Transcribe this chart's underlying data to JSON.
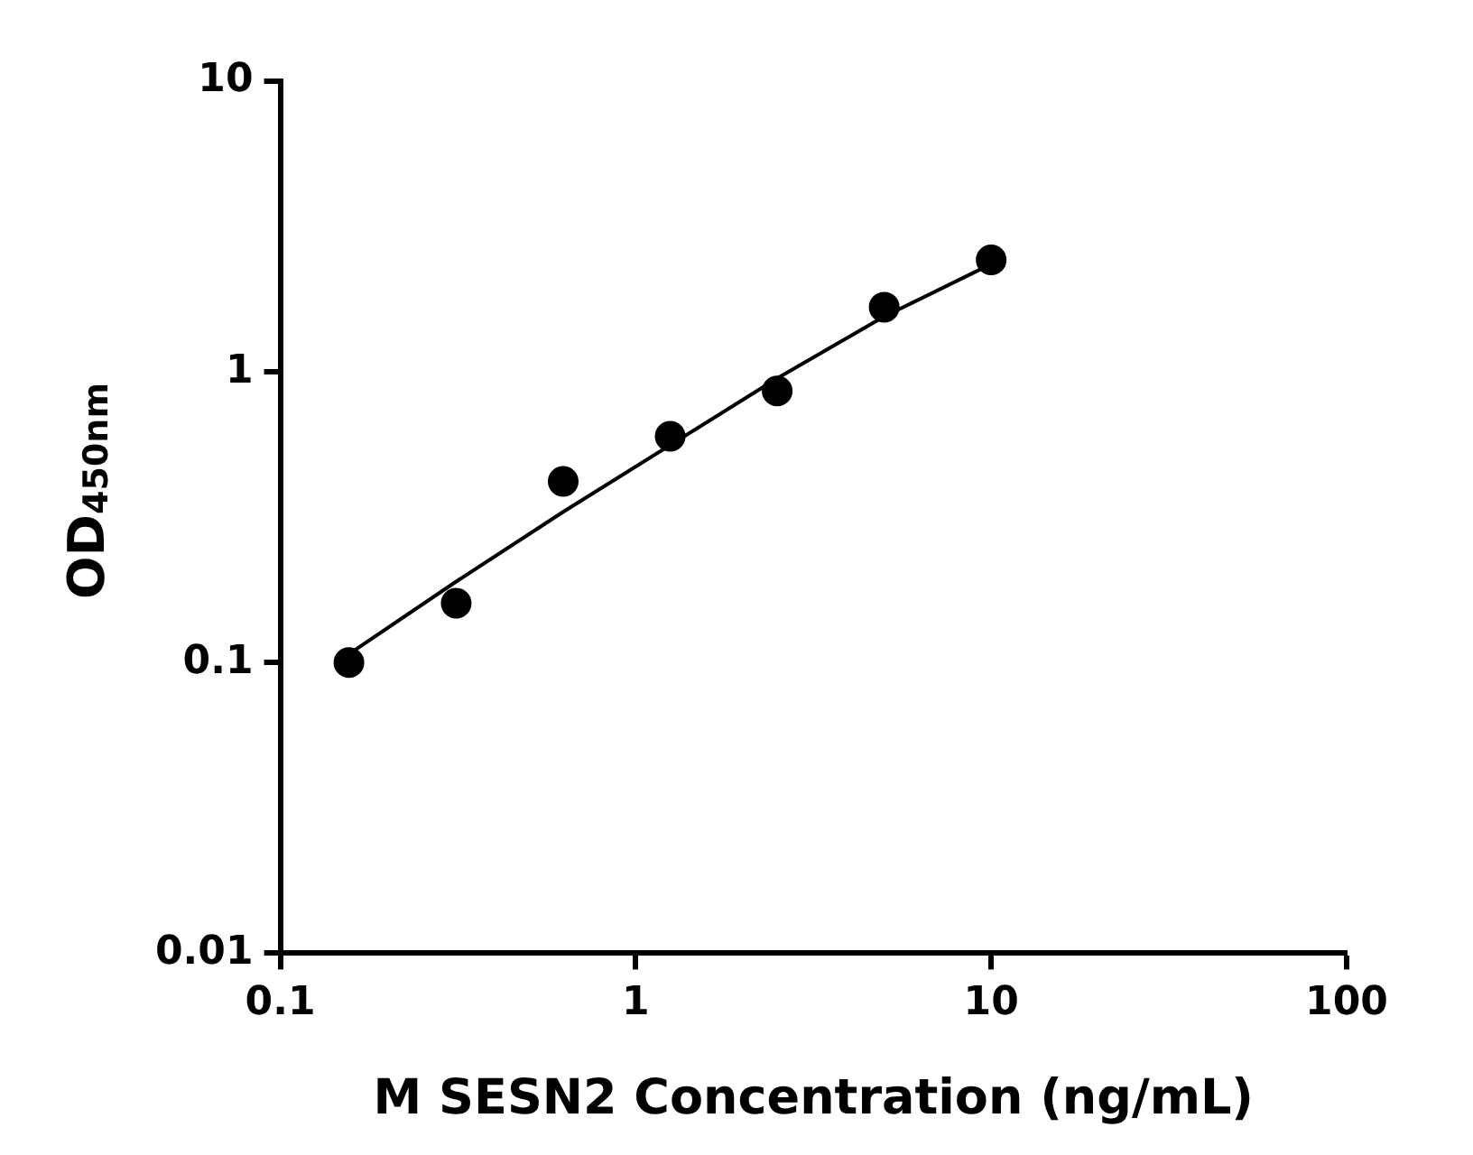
{
  "chart_data": {
    "type": "scatter",
    "xlabel": "M SESN2 Concentration (ng/mL)",
    "ylabel": "OD$_{450nm}$",
    "log": "xy",
    "grid": false,
    "legend": false,
    "marker": "circle",
    "xlim": [
      0.1,
      100
    ],
    "xticks": [
      0.1,
      1,
      10,
      100
    ],
    "ylim": [
      0.01,
      10
    ],
    "yticks": [
      0.01,
      0.1,
      1,
      10
    ],
    "series": [
      {
        "color": "#000000",
        "x": [
          0.156,
          0.3125,
          0.625,
          1.25,
          2.5,
          5,
          10
        ],
        "values": [
          0.1,
          0.16,
          0.42,
          0.6,
          0.86,
          1.67,
          2.43
        ]
      },
      {
        "type": "line",
        "color": "#000000",
        "line_style": "solid",
        "marker": "none",
        "x": [
          0.156,
          0.3125,
          0.625,
          1.25,
          2.5,
          5,
          10
        ],
        "values": [
          0.107,
          0.19,
          0.33,
          0.56,
          0.95,
          1.55,
          2.35
        ]
      }
    ]
  }
}
